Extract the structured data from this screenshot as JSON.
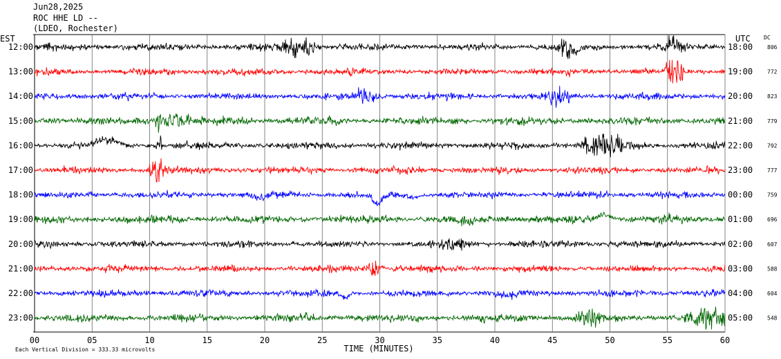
{
  "header": {
    "date": "Jun28,2025",
    "station": "ROC HHE LD --",
    "network": "(LDEO, Rochester)"
  },
  "chart_data": {
    "type": "line",
    "title": "ROC HHE LD --",
    "left_axis_label": "EST",
    "right_axis_label": "UTC",
    "dc_label": "DC",
    "xlabel": "TIME (MINUTES)",
    "xlim": [
      0,
      60
    ],
    "xticks": [
      "00",
      "05",
      "10",
      "15",
      "20",
      "25",
      "30",
      "35",
      "40",
      "45",
      "50",
      "55",
      "60"
    ],
    "grid": "vertical lines every 5 minutes",
    "colors": [
      "#000000",
      "#ff0000",
      "#0000ff",
      "#006600"
    ],
    "rows": [
      {
        "est": "12:00",
        "utc": "18:00",
        "dc": "806"
      },
      {
        "est": "13:00",
        "utc": "19:00",
        "dc": "772"
      },
      {
        "est": "14:00",
        "utc": "20:00",
        "dc": "823"
      },
      {
        "est": "15:00",
        "utc": "21:00",
        "dc": "779"
      },
      {
        "est": "16:00",
        "utc": "22:00",
        "dc": "792"
      },
      {
        "est": "17:00",
        "utc": "23:00",
        "dc": "777"
      },
      {
        "est": "18:00",
        "utc": "00:00",
        "dc": "759"
      },
      {
        "est": "19:00",
        "utc": "01:00",
        "dc": "696"
      },
      {
        "est": "20:00",
        "utc": "02:00",
        "dc": "607"
      },
      {
        "est": "21:00",
        "utc": "03:00",
        "dc": "588"
      },
      {
        "est": "22:00",
        "utc": "04:00",
        "dc": "604"
      },
      {
        "est": "23:00",
        "utc": "05:00",
        "dc": "548"
      }
    ],
    "footer": "Each Vertical Division =  333.33 microvolts"
  }
}
